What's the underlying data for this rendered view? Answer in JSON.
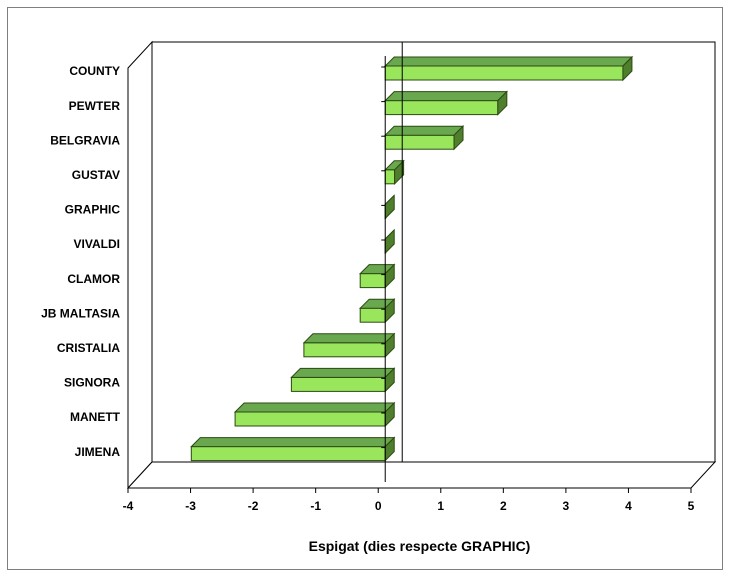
{
  "chart_data": {
    "type": "bar",
    "orientation": "horizontal",
    "style": "3d",
    "categories": [
      "COUNTY",
      "PEWTER",
      "BELGRAVIA",
      "GUSTAV",
      "GRAPHIC",
      "VIVALDI",
      "CLAMOR",
      "JB MALTASIA",
      "CRISTALIA",
      "SIGNORA",
      "MANETT",
      "JIMENA"
    ],
    "values": [
      3.8,
      1.8,
      1.1,
      0.15,
      0.0,
      0.0,
      -0.4,
      -0.4,
      -1.3,
      -1.5,
      -2.4,
      -3.1
    ],
    "title": "",
    "xlabel": "Espigat (dies respecte GRAPHIC)",
    "ylabel": "",
    "xlim": [
      -4,
      5
    ],
    "xticks": [
      -4,
      -3,
      -2,
      -1,
      0,
      1,
      2,
      3,
      4,
      5
    ],
    "grid": false,
    "legend": "none",
    "colors": {
      "bar_front": "#99e55c",
      "bar_top": "#6aa84f",
      "bar_side": "#4f7f2c",
      "bar_edge": "#2b4a10",
      "axis": "#000000"
    }
  }
}
